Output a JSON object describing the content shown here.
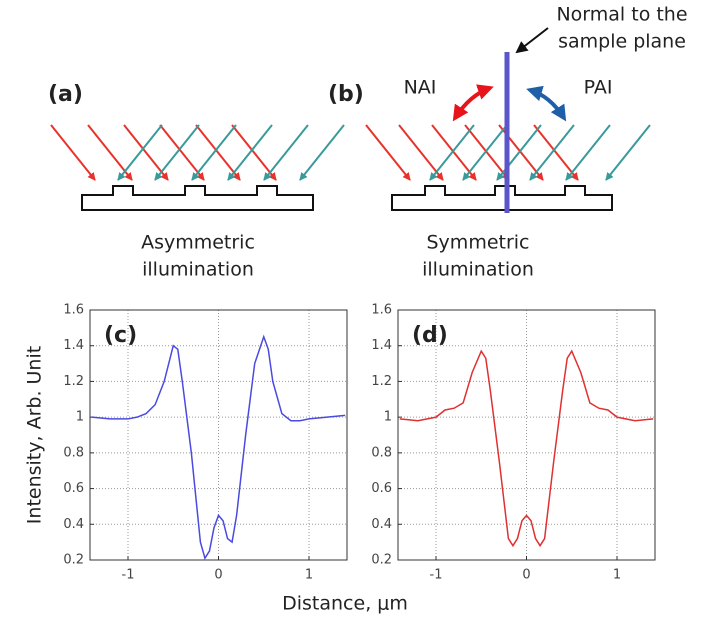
{
  "diagram": {
    "panel_a": "(a)",
    "panel_b": "(b)",
    "normal_label": [
      "Normal to the",
      "sample plane"
    ],
    "nai": "NAI",
    "pai": "PAI",
    "caption_a": [
      "Asymmetric",
      "illumination"
    ],
    "caption_b": [
      "Symmetric",
      "illumination"
    ]
  },
  "chart_data": [
    {
      "type": "line",
      "annotation": "(c)",
      "ylabel": "Intensity, Arb. Unit",
      "xlabel": "Distance, μm",
      "x": [
        -1.4,
        -1.2,
        -1.0,
        -0.9,
        -0.8,
        -0.7,
        -0.6,
        -0.5,
        -0.45,
        -0.4,
        -0.3,
        -0.2,
        -0.15,
        -0.1,
        -0.05,
        0,
        0.05,
        0.1,
        0.15,
        0.2,
        0.3,
        0.4,
        0.5,
        0.55,
        0.6,
        0.7,
        0.8,
        0.9,
        1.0,
        1.2,
        1.4
      ],
      "values": [
        1.0,
        0.99,
        0.99,
        1.0,
        1.02,
        1.07,
        1.2,
        1.4,
        1.38,
        1.2,
        0.8,
        0.3,
        0.21,
        0.25,
        0.38,
        0.45,
        0.42,
        0.32,
        0.3,
        0.45,
        0.9,
        1.3,
        1.45,
        1.38,
        1.2,
        1.02,
        0.98,
        0.98,
        0.99,
        1.0,
        1.01
      ],
      "color": "#4a4ae0",
      "xlim": [
        -1.42,
        1.42
      ],
      "ylim": [
        0.2,
        1.6
      ],
      "xticks": [
        -1,
        0,
        1
      ],
      "yticks": [
        0.2,
        0.4,
        0.6,
        0.8,
        1,
        1.2,
        1.4,
        1.6
      ],
      "grid": true
    },
    {
      "type": "line",
      "annotation": "(d)",
      "x": [
        -1.4,
        -1.2,
        -1.0,
        -0.9,
        -0.8,
        -0.7,
        -0.6,
        -0.5,
        -0.45,
        -0.4,
        -0.3,
        -0.2,
        -0.15,
        -0.1,
        -0.05,
        0,
        0.05,
        0.1,
        0.15,
        0.2,
        0.3,
        0.4,
        0.45,
        0.5,
        0.6,
        0.7,
        0.8,
        0.9,
        1.0,
        1.2,
        1.4
      ],
      "values": [
        0.99,
        0.98,
        1.0,
        1.04,
        1.05,
        1.08,
        1.25,
        1.37,
        1.33,
        1.15,
        0.75,
        0.32,
        0.28,
        0.32,
        0.42,
        0.45,
        0.42,
        0.32,
        0.28,
        0.32,
        0.75,
        1.15,
        1.33,
        1.37,
        1.25,
        1.08,
        1.05,
        1.04,
        1.0,
        0.98,
        0.99
      ],
      "color": "#e03030",
      "xlim": [
        -1.42,
        1.42
      ],
      "ylim": [
        0.2,
        1.6
      ],
      "xticks": [
        -1,
        0,
        1
      ],
      "yticks": [
        0.2,
        0.4,
        0.6,
        0.8,
        1,
        1.2,
        1.4,
        1.6
      ],
      "grid": true
    }
  ]
}
